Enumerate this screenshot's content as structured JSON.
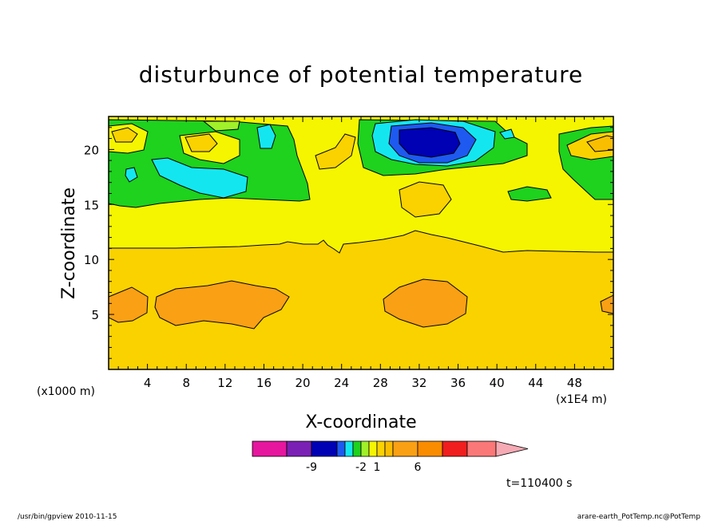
{
  "chart_data": {
    "type": "heatmap",
    "title": "disturbunce of potential temperature",
    "xlabel": "X-coordinate",
    "ylabel": "Z-coordinate",
    "x_unit_left": "(x1000 m)",
    "x_unit_right": "(x1E4 m)",
    "xlim": [
      0,
      52
    ],
    "ylim": [
      0,
      23
    ],
    "x_ticks": [
      {
        "value": 4,
        "label": "4"
      },
      {
        "value": 8,
        "label": "8"
      },
      {
        "value": 12,
        "label": "12"
      },
      {
        "value": 16,
        "label": "16"
      },
      {
        "value": 20,
        "label": "20"
      },
      {
        "value": 24,
        "label": "24"
      },
      {
        "value": 28,
        "label": "28"
      },
      {
        "value": 32,
        "label": "32"
      },
      {
        "value": 36,
        "label": "36"
      },
      {
        "value": 40,
        "label": "40"
      },
      {
        "value": 44,
        "label": "44"
      },
      {
        "value": 48,
        "label": "48"
      }
    ],
    "y_ticks": [
      {
        "value": 5,
        "label": "5"
      },
      {
        "value": 10,
        "label": "10"
      },
      {
        "value": 15,
        "label": "15"
      },
      {
        "value": 20,
        "label": "20"
      }
    ],
    "colorbar": {
      "colors": [
        "#e6169e",
        "#7b20b4",
        "#0000b5",
        "#1e5af0",
        "#14e6f0",
        "#1ed21e",
        "#a0f02a",
        "#f5f500",
        "#fad200",
        "#fabe00",
        "#faa014",
        "#fa8c00",
        "#f01e1e",
        "#fa7878",
        "#f5aab4"
      ],
      "labels": [
        {
          "index": 2,
          "text": "-9"
        },
        {
          "index": 6,
          "text": "-2"
        },
        {
          "index": 8,
          "text": "1"
        },
        {
          "index": 11,
          "text": "6"
        }
      ]
    },
    "grid": false,
    "legend": "colorbar-bottom",
    "time_label": "t=110400 s"
  },
  "footer": {
    "left": "/usr/bin/gpview   2010-11-15",
    "right": "arare-earth_PotTemp.nc@PotTemp"
  }
}
